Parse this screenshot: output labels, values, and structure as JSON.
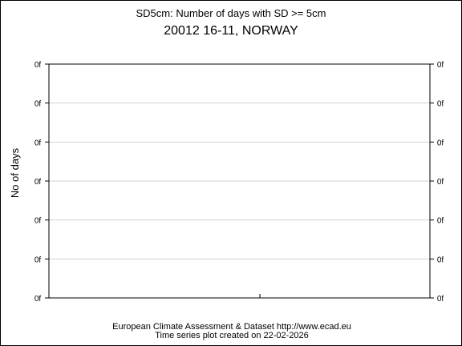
{
  "chart_data": {
    "type": "line",
    "title": "SD5cm: Number of days with SD >= 5cm",
    "subtitle": "20012 16-11, NORWAY",
    "ylabel": "No of days",
    "xlabel": "",
    "y_tick_labels": [
      "0f",
      "0f",
      "0f",
      "0f",
      "0f",
      "0f",
      "0f"
    ],
    "grid": true,
    "series": [],
    "footer": {
      "line1": "European Climate Assessment & Dataset  http://www.ecad.eu",
      "line2": "Time series plot created on 22-02-2026"
    }
  }
}
